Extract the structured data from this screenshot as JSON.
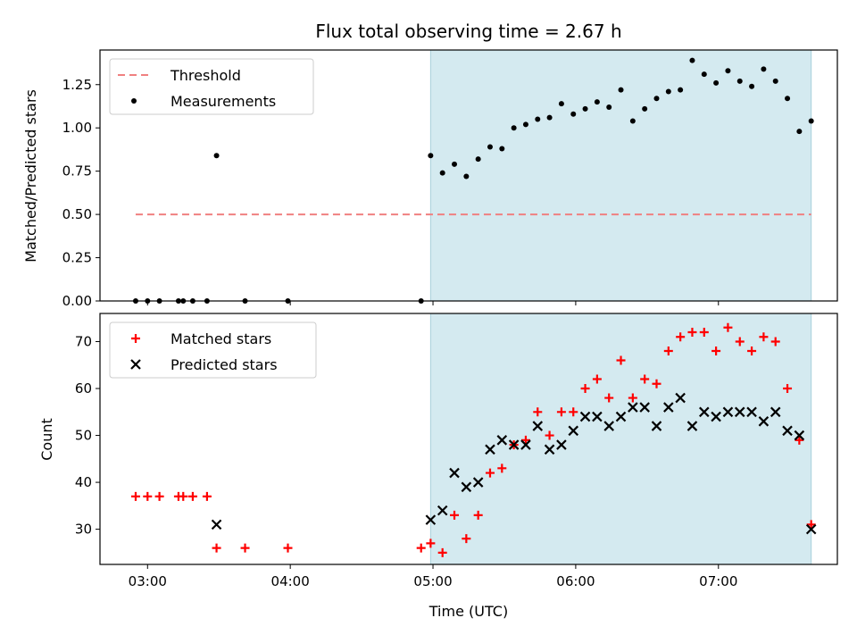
{
  "chart_data": [
    {
      "type": "scatter",
      "title": "Flux total observing time = 2.67 h",
      "xlabel": "",
      "ylabel": "Matched/Predicted stars",
      "ylim": [
        0,
        1.45
      ],
      "yticks": [
        0.0,
        0.25,
        0.5,
        0.75,
        1.0,
        1.25
      ],
      "ytick_labels": [
        "0.00",
        "0.25",
        "0.50",
        "0.75",
        "1.00",
        "1.25"
      ],
      "xlim": [
        "02:40",
        "07:50"
      ],
      "xticks": [
        "03:00",
        "04:00",
        "05:00",
        "06:00",
        "07:00"
      ],
      "shaded_region": {
        "x0": "04:59",
        "x1": "07:39",
        "color": "#d4eaf0"
      },
      "threshold": {
        "name": "Threshold",
        "value": 0.5,
        "x0": "02:55",
        "x1": "07:39",
        "color": "#f08080"
      },
      "legend": {
        "location": "upper-left",
        "entries": [
          "Threshold",
          "Measurements"
        ]
      },
      "series": [
        {
          "name": "Measurements",
          "color": "#000000",
          "points": [
            [
              "02:55",
              0.0
            ],
            [
              "03:00",
              0.0
            ],
            [
              "03:05",
              0.0
            ],
            [
              "03:13",
              0.0
            ],
            [
              "03:15",
              0.0
            ],
            [
              "03:19",
              0.0
            ],
            [
              "03:25",
              0.0
            ],
            [
              "03:29",
              0.84
            ],
            [
              "03:41",
              0.0
            ],
            [
              "03:59",
              0.0
            ],
            [
              "04:55",
              0.0
            ],
            [
              "04:59",
              0.84
            ],
            [
              "05:04",
              0.74
            ],
            [
              "05:09",
              0.79
            ],
            [
              "05:14",
              0.72
            ],
            [
              "05:19",
              0.82
            ],
            [
              "05:24",
              0.89
            ],
            [
              "05:29",
              0.88
            ],
            [
              "05:34",
              1.0
            ],
            [
              "05:39",
              1.02
            ],
            [
              "05:44",
              1.05
            ],
            [
              "05:49",
              1.06
            ],
            [
              "05:54",
              1.14
            ],
            [
              "05:59",
              1.08
            ],
            [
              "06:04",
              1.11
            ],
            [
              "06:09",
              1.15
            ],
            [
              "06:14",
              1.12
            ],
            [
              "06:19",
              1.22
            ],
            [
              "06:24",
              1.04
            ],
            [
              "06:29",
              1.11
            ],
            [
              "06:34",
              1.17
            ],
            [
              "06:39",
              1.21
            ],
            [
              "06:44",
              1.22
            ],
            [
              "06:49",
              1.39
            ],
            [
              "06:54",
              1.31
            ],
            [
              "06:59",
              1.26
            ],
            [
              "07:04",
              1.33
            ],
            [
              "07:09",
              1.27
            ],
            [
              "07:14",
              1.24
            ],
            [
              "07:19",
              1.34
            ],
            [
              "07:24",
              1.27
            ],
            [
              "07:29",
              1.17
            ],
            [
              "07:34",
              0.98
            ],
            [
              "07:39",
              1.04
            ]
          ]
        }
      ]
    },
    {
      "type": "scatter",
      "title": "",
      "xlabel": "Time (UTC)",
      "ylabel": "Count",
      "ylim": [
        22.5,
        76
      ],
      "yticks": [
        30,
        40,
        50,
        60,
        70
      ],
      "ytick_labels": [
        "30",
        "40",
        "50",
        "60",
        "70"
      ],
      "xlim": [
        "02:40",
        "07:50"
      ],
      "xticks": [
        "03:00",
        "04:00",
        "05:00",
        "06:00",
        "07:00"
      ],
      "xtick_labels": [
        "03:00",
        "04:00",
        "05:00",
        "06:00",
        "07:00"
      ],
      "shaded_region": {
        "x0": "04:59",
        "x1": "07:39",
        "color": "#d4eaf0"
      },
      "legend": {
        "location": "upper-left",
        "entries": [
          "Matched stars",
          "Predicted stars"
        ]
      },
      "series": [
        {
          "name": "Matched stars",
          "marker": "plus",
          "color": "#ff0000",
          "points": [
            [
              "02:55",
              37
            ],
            [
              "03:00",
              37
            ],
            [
              "03:05",
              37
            ],
            [
              "03:13",
              37
            ],
            [
              "03:15",
              37
            ],
            [
              "03:19",
              37
            ],
            [
              "03:25",
              37
            ],
            [
              "03:29",
              26
            ],
            [
              "03:41",
              26
            ],
            [
              "03:59",
              26
            ],
            [
              "04:55",
              26
            ],
            [
              "04:59",
              27
            ],
            [
              "05:04",
              25
            ],
            [
              "05:09",
              33
            ],
            [
              "05:14",
              28
            ],
            [
              "05:19",
              33
            ],
            [
              "05:24",
              42
            ],
            [
              "05:29",
              43
            ],
            [
              "05:34",
              48
            ],
            [
              "05:39",
              49
            ],
            [
              "05:44",
              55
            ],
            [
              "05:49",
              50
            ],
            [
              "05:54",
              55
            ],
            [
              "05:59",
              55
            ],
            [
              "06:04",
              60
            ],
            [
              "06:09",
              62
            ],
            [
              "06:14",
              58
            ],
            [
              "06:19",
              66
            ],
            [
              "06:24",
              58
            ],
            [
              "06:29",
              62
            ],
            [
              "06:34",
              61
            ],
            [
              "06:39",
              68
            ],
            [
              "06:44",
              71
            ],
            [
              "06:49",
              72
            ],
            [
              "06:54",
              72
            ],
            [
              "06:59",
              68
            ],
            [
              "07:04",
              73
            ],
            [
              "07:09",
              70
            ],
            [
              "07:14",
              68
            ],
            [
              "07:19",
              71
            ],
            [
              "07:24",
              70
            ],
            [
              "07:29",
              60
            ],
            [
              "07:34",
              49
            ],
            [
              "07:39",
              31
            ]
          ]
        },
        {
          "name": "Predicted stars",
          "marker": "x",
          "color": "#000000",
          "points": [
            [
              "03:29",
              31
            ],
            [
              "04:59",
              32
            ],
            [
              "05:04",
              34
            ],
            [
              "05:09",
              42
            ],
            [
              "05:14",
              39
            ],
            [
              "05:19",
              40
            ],
            [
              "05:24",
              47
            ],
            [
              "05:29",
              49
            ],
            [
              "05:34",
              48
            ],
            [
              "05:39",
              48
            ],
            [
              "05:44",
              52
            ],
            [
              "05:49",
              47
            ],
            [
              "05:54",
              48
            ],
            [
              "05:59",
              51
            ],
            [
              "06:04",
              54
            ],
            [
              "06:09",
              54
            ],
            [
              "06:14",
              52
            ],
            [
              "06:19",
              54
            ],
            [
              "06:24",
              56
            ],
            [
              "06:29",
              56
            ],
            [
              "06:34",
              52
            ],
            [
              "06:39",
              56
            ],
            [
              "06:44",
              58
            ],
            [
              "06:49",
              52
            ],
            [
              "06:54",
              55
            ],
            [
              "06:59",
              54
            ],
            [
              "07:04",
              55
            ],
            [
              "07:09",
              55
            ],
            [
              "07:14",
              55
            ],
            [
              "07:19",
              53
            ],
            [
              "07:24",
              55
            ],
            [
              "07:29",
              51
            ],
            [
              "07:34",
              50
            ],
            [
              "07:39",
              30
            ]
          ]
        }
      ]
    }
  ]
}
